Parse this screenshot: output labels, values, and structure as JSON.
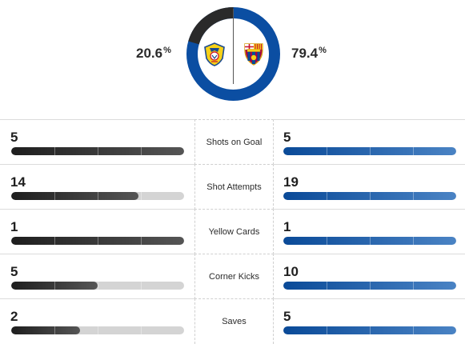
{
  "possession": {
    "home_pct": "20.6",
    "home_pct_value": 0.206,
    "away_pct": "79.4",
    "away_pct_value": 0.794,
    "percent_sign": "%"
  },
  "teams": {
    "home": {
      "crest_icon": "villarreal-crest-icon",
      "color": "#2a2a2a"
    },
    "away": {
      "crest_icon": "barcelona-crest-icon",
      "color": "#0b4ea2"
    }
  },
  "colors": {
    "home_bar": "#2a2a2a",
    "away_bar": "#0b4ea2",
    "track": "#d4d4d4"
  },
  "stats": [
    {
      "label": "Shots on Goal",
      "home": "5",
      "away": "5",
      "home_fill": 1.0,
      "away_fill": 1.0
    },
    {
      "label": "Shot Attempts",
      "home": "14",
      "away": "19",
      "home_fill": 0.737,
      "away_fill": 1.0
    },
    {
      "label": "Yellow Cards",
      "home": "1",
      "away": "1",
      "home_fill": 1.0,
      "away_fill": 1.0
    },
    {
      "label": "Corner Kicks",
      "home": "5",
      "away": "10",
      "home_fill": 0.5,
      "away_fill": 1.0
    },
    {
      "label": "Saves",
      "home": "2",
      "away": "5",
      "home_fill": 0.4,
      "away_fill": 1.0
    }
  ]
}
